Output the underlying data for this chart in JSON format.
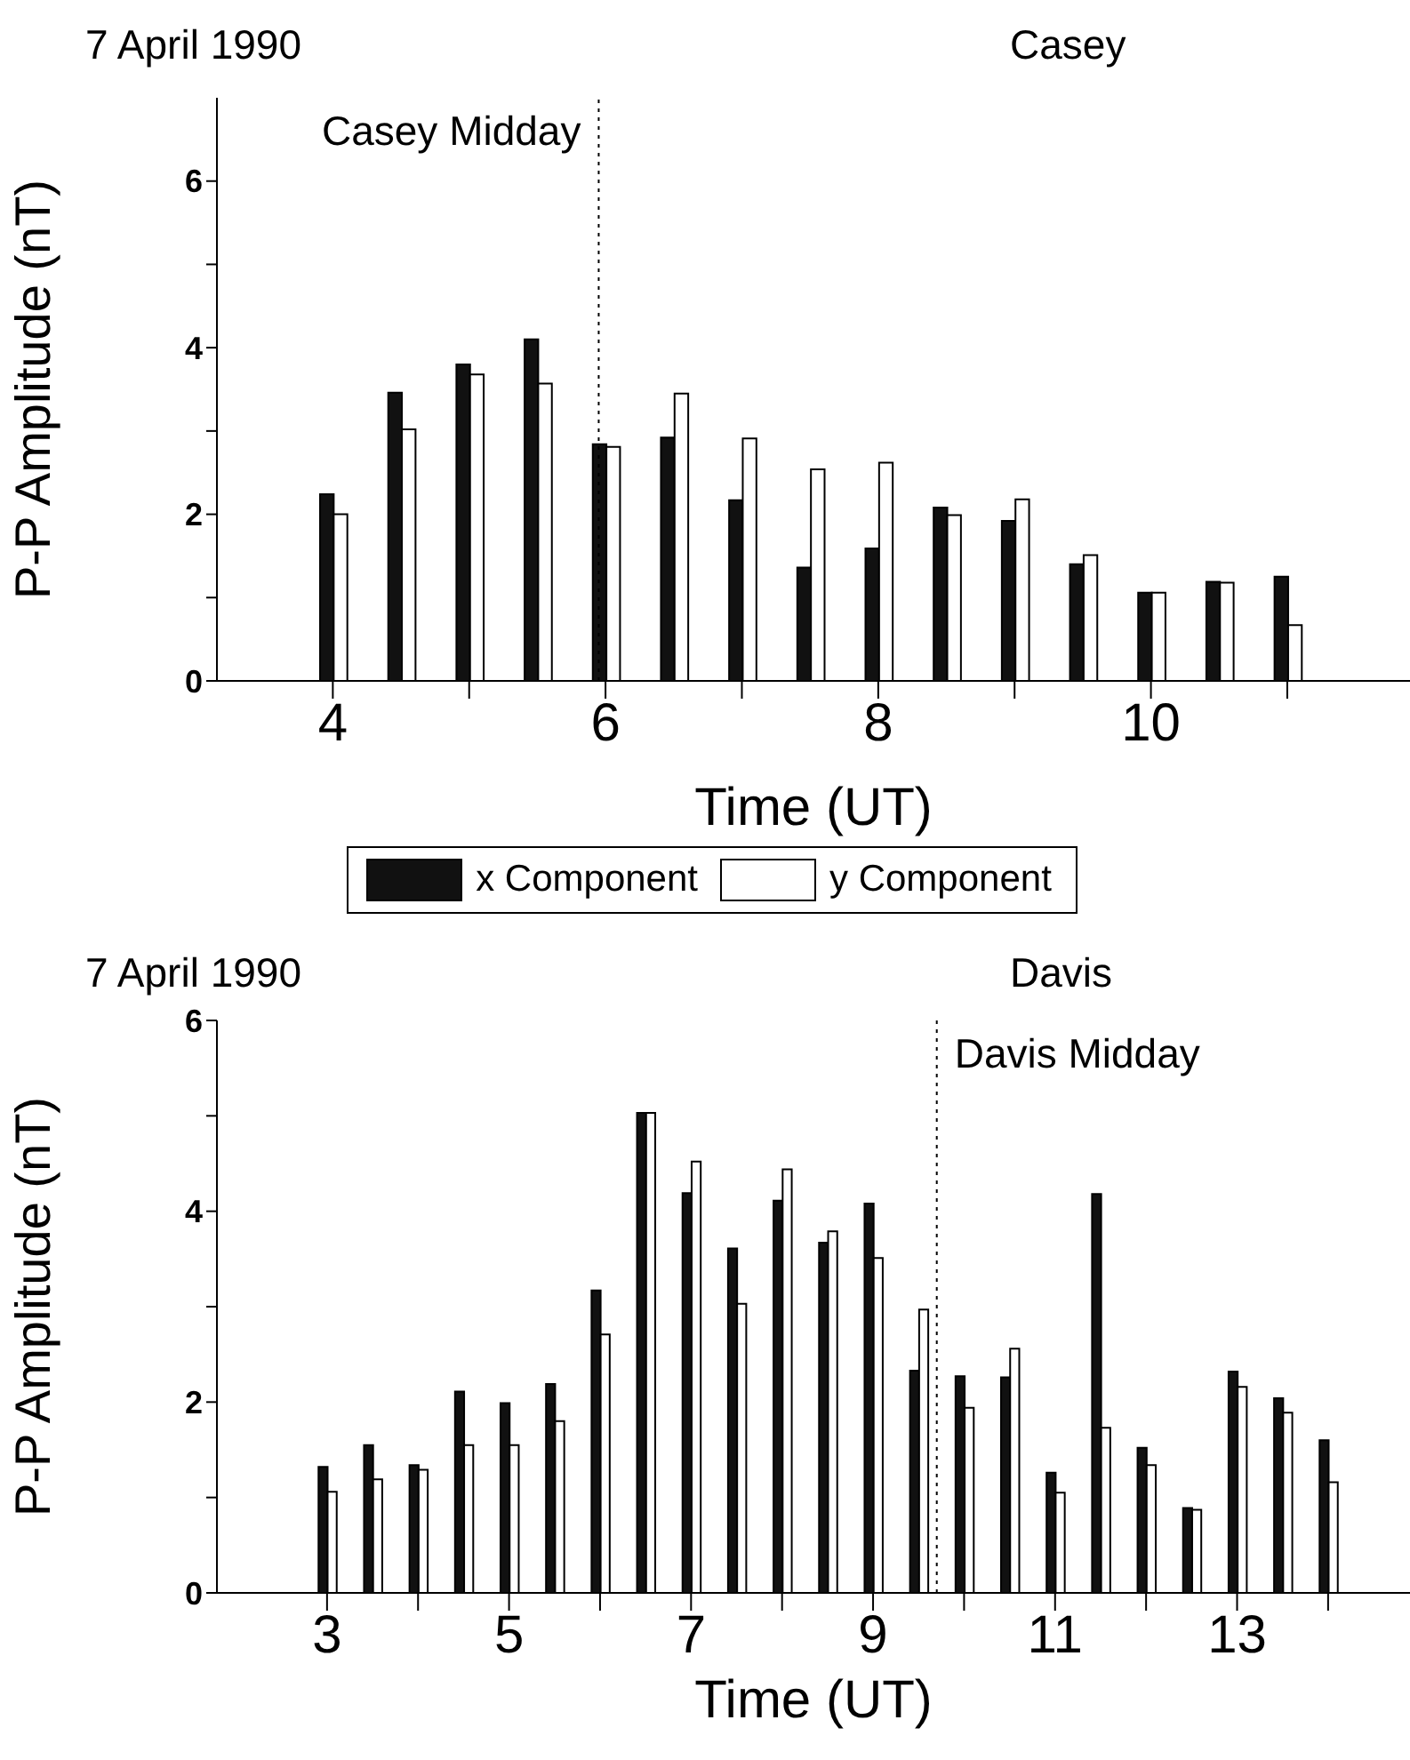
{
  "chart_data": [
    {
      "type": "bar",
      "title": "7 April 1990",
      "subtitle": "Casey",
      "xlabel": "Time (UT)",
      "ylabel": "P-P Amplitude (nT)",
      "x": [
        4,
        4.5,
        5,
        5.5,
        6,
        6.5,
        7,
        7.5,
        8,
        8.5,
        9,
        9.5,
        10,
        10.5,
        11
      ],
      "series": [
        {
          "name": "x Component",
          "color": "#111111",
          "values": [
            2.24,
            3.46,
            3.8,
            4.1,
            2.84,
            2.92,
            2.17,
            1.36,
            1.59,
            2.08,
            1.92,
            1.4,
            1.06,
            1.19,
            1.25
          ]
        },
        {
          "name": "y Component",
          "color": "#ffffff",
          "values": [
            2.0,
            3.02,
            3.68,
            3.57,
            2.81,
            3.45,
            2.91,
            2.54,
            2.62,
            1.99,
            2.18,
            1.51,
            1.06,
            1.18,
            0.67
          ]
        }
      ],
      "xlim": [
        3.15,
        11.9
      ],
      "xticks": [
        4,
        {
          "value": 5,
          "label": null
        },
        6,
        {
          "value": 7,
          "label": null
        },
        8,
        {
          "value": 9,
          "label": null
        },
        10,
        {
          "value": 11,
          "label": null
        }
      ],
      "ylim": [
        0,
        7
      ],
      "yticks": [
        0,
        {
          "value": 1,
          "label": null
        },
        2,
        {
          "value": 3,
          "label": null
        },
        4,
        {
          "value": 5,
          "label": null
        },
        6
      ],
      "ref_lines": [
        {
          "axis": "x",
          "value": 5.95,
          "label": "Casey Midday",
          "line_style": "dotted"
        }
      ],
      "grid": false,
      "legend": "bottom"
    },
    {
      "type": "bar",
      "title": "7 April 1990",
      "subtitle": "Davis",
      "xlabel": "Time (UT)",
      "ylabel": "P-P Amplitude (nT)",
      "x": [
        3,
        3.5,
        4,
        4.5,
        5,
        5.5,
        6,
        6.5,
        7,
        7.5,
        8,
        8.5,
        9,
        9.5,
        10,
        10.5,
        11,
        11.5,
        12,
        12.5,
        13,
        13.5,
        14
      ],
      "series": [
        {
          "color": "#111111",
          "values": [
            1.32,
            1.55,
            1.34,
            2.11,
            1.99,
            2.19,
            3.17,
            5.03,
            4.19,
            3.61,
            4.11,
            3.67,
            4.08,
            2.33,
            2.27,
            2.26,
            1.26,
            4.18,
            1.52,
            0.89,
            2.32,
            2.04,
            1.6
          ]
        },
        {
          "color": "#ffffff",
          "values": [
            1.06,
            1.19,
            1.29,
            1.55,
            1.55,
            1.8,
            2.71,
            5.03,
            4.52,
            3.03,
            4.44,
            3.79,
            3.51,
            2.97,
            1.94,
            2.56,
            1.05,
            1.73,
            1.34,
            0.87,
            2.16,
            1.89,
            1.16
          ]
        }
      ],
      "xlim": [
        1.79,
        14.9
      ],
      "xticks": [
        3,
        {
          "value": 4,
          "label": null
        },
        5,
        {
          "value": 6,
          "label": null
        },
        7,
        {
          "value": 8,
          "label": null
        },
        9,
        {
          "value": 10,
          "label": null
        },
        11,
        {
          "value": 12,
          "label": null
        },
        13,
        {
          "value": 14,
          "label": null
        }
      ],
      "ylim": [
        0,
        6
      ],
      "yticks": [
        0,
        {
          "value": 1,
          "label": null
        },
        2,
        {
          "value": 3,
          "label": null
        },
        4,
        {
          "value": 5,
          "label": null
        },
        6
      ],
      "ref_lines": [
        {
          "axis": "x",
          "value": 9.7,
          "label": "Davis Midday",
          "line_style": "dotted"
        }
      ],
      "grid": false,
      "legend": false
    }
  ]
}
